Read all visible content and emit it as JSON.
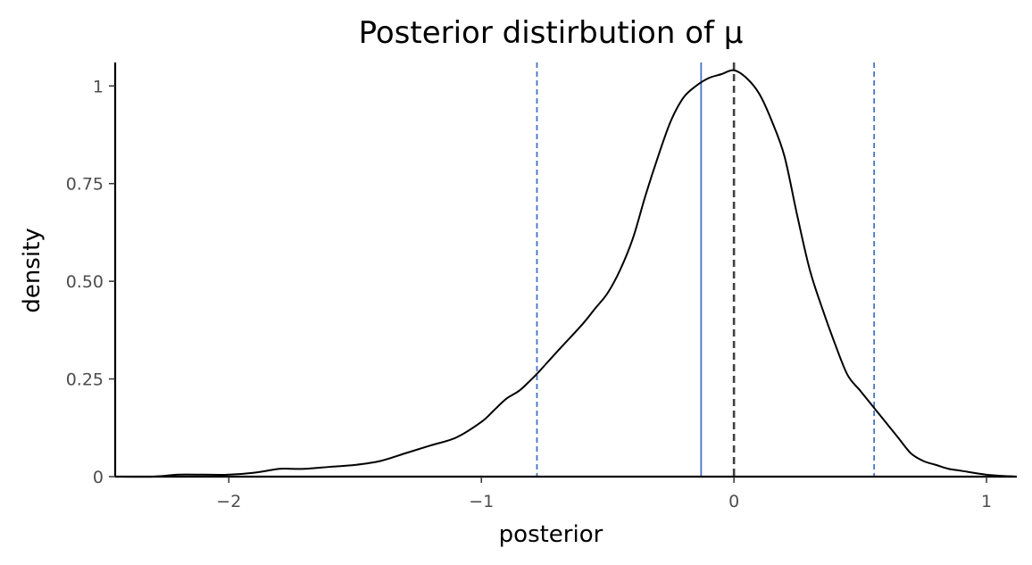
{
  "chart_data": {
    "type": "line",
    "title": "Posterior distirbution of μ",
    "xlabel": "posterior",
    "ylabel": "density",
    "xlim": [
      -2.45,
      1.12
    ],
    "ylim": [
      0,
      1.06
    ],
    "x_ticks": [
      -2,
      -1,
      0,
      1
    ],
    "x_tick_labels": [
      "−2",
      "−1",
      "0",
      "1"
    ],
    "y_ticks": [
      0,
      0.25,
      0.5,
      0.75,
      1
    ],
    "y_tick_labels": [
      "0",
      "0.25",
      "0.50",
      "0.75",
      "1"
    ],
    "grid": false,
    "legend": "none",
    "series": [
      {
        "color": "#000000",
        "x": [
          -2.45,
          -2.3,
          -2.2,
          -2.1,
          -2.0,
          -1.9,
          -1.8,
          -1.75,
          -1.7,
          -1.6,
          -1.5,
          -1.4,
          -1.3,
          -1.2,
          -1.1,
          -1.0,
          -0.95,
          -0.9,
          -0.85,
          -0.8,
          -0.77,
          -0.7,
          -0.6,
          -0.55,
          -0.5,
          -0.45,
          -0.4,
          -0.35,
          -0.3,
          -0.25,
          -0.2,
          -0.15,
          -0.1,
          -0.05,
          0.0,
          0.05,
          0.1,
          0.15,
          0.2,
          0.25,
          0.3,
          0.35,
          0.4,
          0.45,
          0.5,
          0.55,
          0.6,
          0.65,
          0.7,
          0.75,
          0.8,
          0.85,
          0.9,
          1.0,
          1.12
        ],
        "y": [
          0.0,
          0.0,
          0.005,
          0.005,
          0.005,
          0.01,
          0.02,
          0.02,
          0.02,
          0.025,
          0.03,
          0.04,
          0.06,
          0.08,
          0.1,
          0.14,
          0.17,
          0.2,
          0.22,
          0.25,
          0.27,
          0.32,
          0.39,
          0.43,
          0.47,
          0.53,
          0.61,
          0.72,
          0.82,
          0.91,
          0.97,
          1.0,
          1.02,
          1.03,
          1.04,
          1.02,
          0.98,
          0.91,
          0.82,
          0.67,
          0.53,
          0.43,
          0.34,
          0.26,
          0.22,
          0.18,
          0.14,
          0.1,
          0.06,
          0.04,
          0.03,
          0.02,
          0.015,
          0.005,
          0.0
        ]
      }
    ],
    "reference_lines": [
      {
        "x": -0.78,
        "color": "#4472c4",
        "style": "dashed"
      },
      {
        "x": -0.13,
        "color": "#4472c4",
        "style": "solid"
      },
      {
        "x": 0.0,
        "color": "#404040",
        "style": "dashed"
      },
      {
        "x": 0.555,
        "color": "#4472c4",
        "style": "dashed"
      }
    ]
  }
}
